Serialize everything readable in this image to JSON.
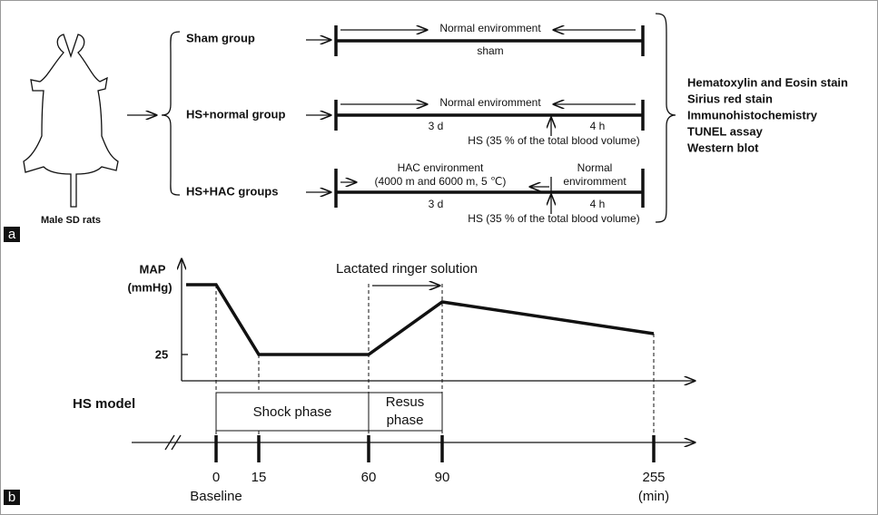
{
  "panel_a": {
    "label": "a",
    "animal": "Male SD rats",
    "groups": [
      {
        "name": "Sham group",
        "env": "Normal enviromment",
        "below": "sham"
      },
      {
        "name": "HS+normal group",
        "env": "Normal enviromment",
        "left_time": "3 d",
        "right_time": "4 h",
        "event": "HS (35 % of the total blood volume)"
      },
      {
        "name": "HS+HAC groups",
        "env_line1": "HAC environment",
        "env_line2": "(4000 m and 6000 m, 5 ℃)",
        "env2_line1": "Normal",
        "env2_line2": "enviromment",
        "left_time": "3 d",
        "right_time": "4 h",
        "event": "HS (35 % of the total blood volume)"
      }
    ],
    "assays": [
      "Hematoxylin and Eosin stain",
      "Sirius red stain",
      "Immunohistochemistry",
      "TUNEL assay",
      "Western blot"
    ]
  },
  "panel_b": {
    "label": "b",
    "y_label_line1": "MAP",
    "y_label_line2": "(mmHg)",
    "y_tick": "25",
    "infusion": "Lactated ringer solution",
    "model": "HS model",
    "phase1": "Shock phase",
    "phase2_line1": "Resus",
    "phase2_line2": "phase",
    "times": [
      "0",
      "15",
      "60",
      "90",
      "255"
    ],
    "baseline": "Baseline",
    "unit": "(min)"
  }
}
